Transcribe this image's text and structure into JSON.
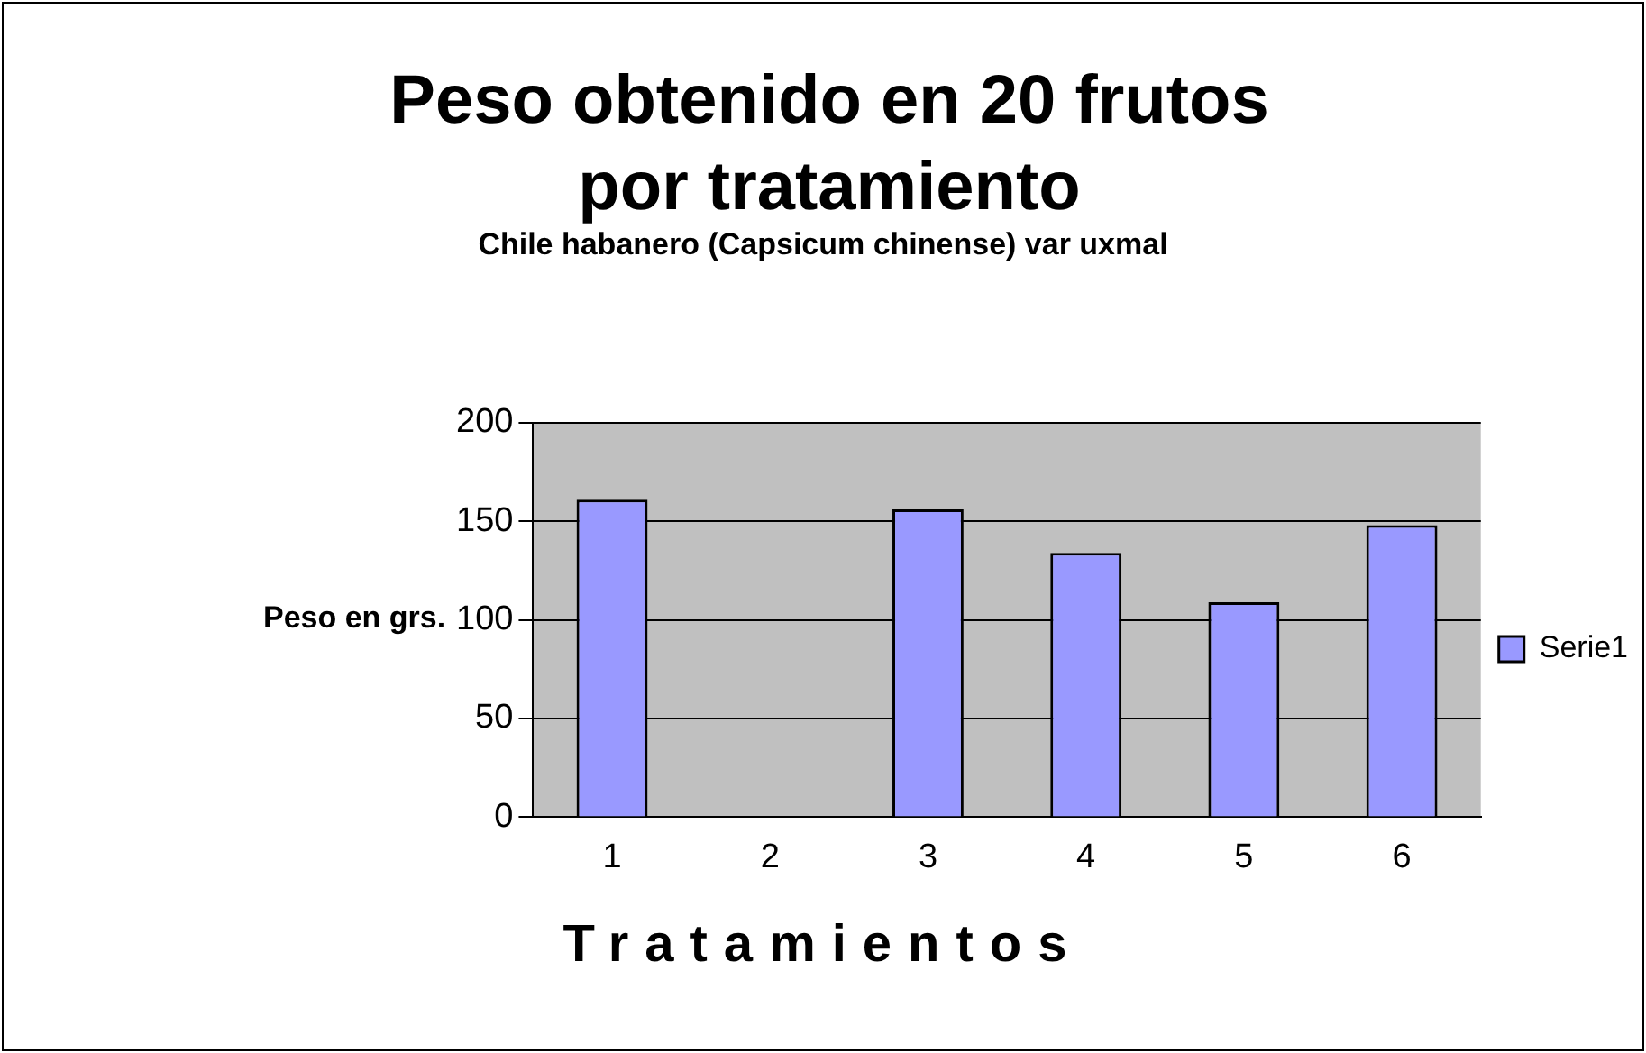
{
  "chart_data": {
    "type": "bar",
    "title": "Peso obtenido en 20 frutos por tratamiento",
    "subtitle": "Chile habanero (Capsicum chinense) var uxmal",
    "xlabel": "Tratamientos",
    "ylabel": "Peso en grs.",
    "categories": [
      "1",
      "2",
      "3",
      "4",
      "5",
      "6"
    ],
    "series": [
      {
        "name": "Serie1",
        "color": "#9999ff",
        "values": [
          161,
          0,
          156,
          134,
          109,
          148
        ]
      }
    ],
    "ylim": [
      0,
      200
    ],
    "yticks": [
      0,
      50,
      100,
      150,
      200
    ],
    "grid": "y",
    "legend": "right"
  }
}
